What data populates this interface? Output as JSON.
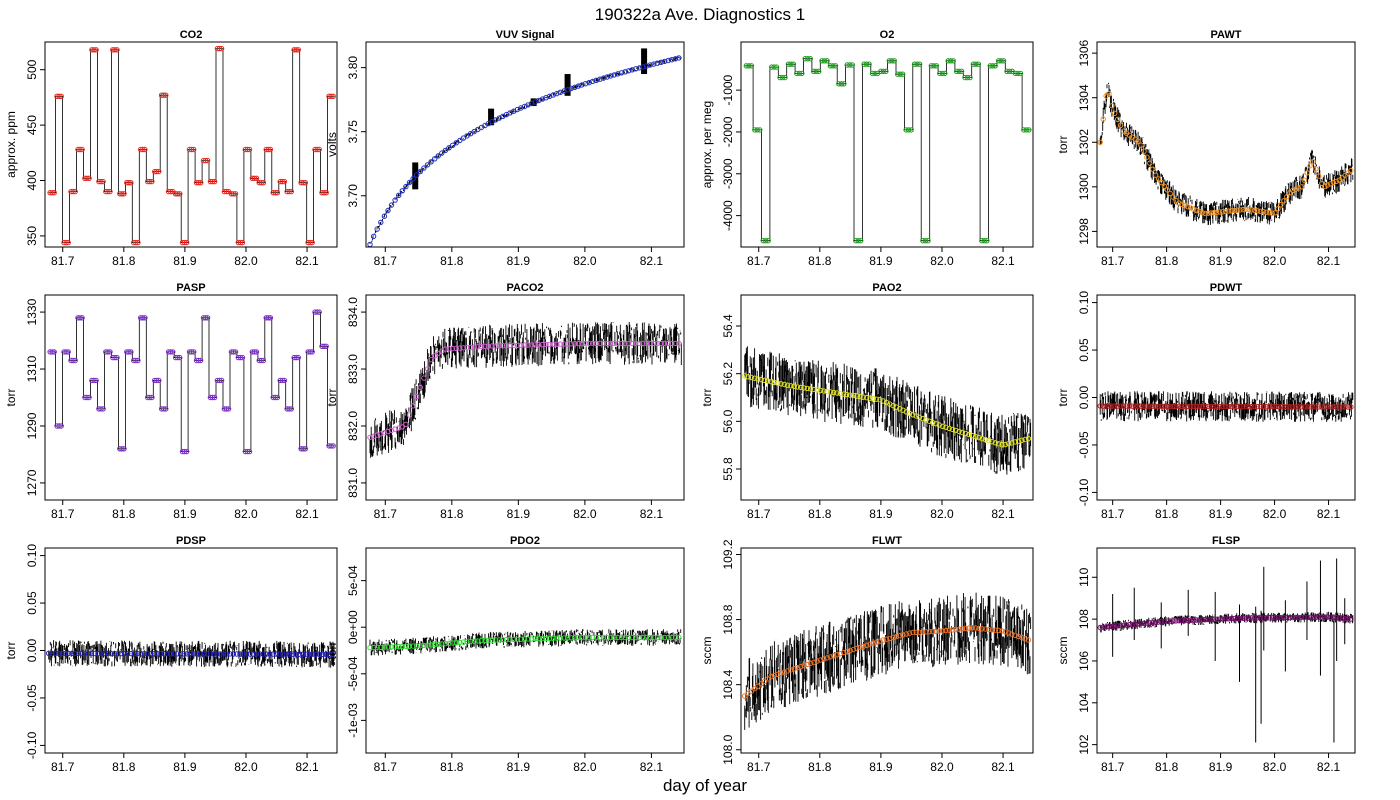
{
  "figure": {
    "title": "190322a   Ave. Diagnostics 1",
    "xlabel": "day of year"
  },
  "chart_data": [
    {
      "type": "line",
      "name": "co2",
      "title": "CO2",
      "ylabel": "approx. ppm",
      "xlim": [
        81.671,
        82.149
      ],
      "ylim": [
        340,
        525
      ],
      "xticks": [
        {
          "v": 81.7,
          "l": "81.7"
        },
        {
          "v": 81.8,
          "l": "81.8"
        },
        {
          "v": 81.9,
          "l": "81.9"
        },
        {
          "v": 82.0,
          "l": "82.0"
        },
        {
          "v": 82.1,
          "l": "82.1"
        }
      ],
      "yticks": [
        {
          "v": 350,
          "l": "350"
        },
        {
          "v": 400,
          "l": "400"
        },
        {
          "v": 450,
          "l": "450"
        },
        {
          "v": 500,
          "l": "500"
        }
      ],
      "grid": false,
      "marker_color": "#e8281e",
      "kind": "step",
      "levels": [
        389,
        476,
        344,
        390,
        428,
        402,
        518,
        399,
        390,
        518,
        388,
        398,
        344,
        428,
        399,
        408,
        477,
        390,
        388,
        344,
        428,
        398,
        418,
        399,
        519,
        390,
        388,
        344,
        428,
        402,
        398,
        428,
        389,
        399,
        390,
        518,
        398,
        344,
        428,
        389,
        476
      ],
      "start": 81.677,
      "end": 82.145
    },
    {
      "type": "line",
      "name": "vuv",
      "title": "VUV Signal",
      "ylabel": "volts",
      "xlim": [
        81.671,
        82.149
      ],
      "ylim": [
        3.66,
        3.82
      ],
      "xticks": [
        {
          "v": 81.7,
          "l": "81.7"
        },
        {
          "v": 81.8,
          "l": "81.8"
        },
        {
          "v": 81.9,
          "l": "81.9"
        },
        {
          "v": 82.0,
          "l": "82.0"
        },
        {
          "v": 82.1,
          "l": "82.1"
        }
      ],
      "yticks": [
        {
          "v": 3.7,
          "l": "3.70"
        },
        {
          "v": 3.75,
          "l": "3.75"
        },
        {
          "v": 3.8,
          "l": "3.80"
        }
      ],
      "grid": false,
      "marker_color": "#1f2fc8",
      "kind": "log",
      "y0": 3.662,
      "y1": 3.808,
      "noise": 0.0015,
      "spikes": [
        {
          "x": 81.745,
          "lo": 3.705,
          "hi": 3.726
        },
        {
          "x": 81.859,
          "lo": 3.755,
          "hi": 3.768
        },
        {
          "x": 81.923,
          "lo": 3.77,
          "hi": 3.776
        },
        {
          "x": 81.974,
          "lo": 3.778,
          "hi": 3.795
        },
        {
          "x": 82.089,
          "lo": 3.795,
          "hi": 3.815
        }
      ],
      "start": 81.677,
      "end": 82.145
    },
    {
      "type": "line",
      "name": "o2",
      "title": "O2",
      "ylabel": "approx. per meg",
      "xlim": [
        81.671,
        82.149
      ],
      "ylim": [
        -4750,
        150
      ],
      "xticks": [
        {
          "v": 81.7,
          "l": "81.7"
        },
        {
          "v": 81.8,
          "l": "81.8"
        },
        {
          "v": 81.9,
          "l": "81.9"
        },
        {
          "v": 82.0,
          "l": "82.0"
        },
        {
          "v": 82.1,
          "l": "82.1"
        }
      ],
      "yticks": [
        {
          "v": -4000,
          "l": "-4000"
        },
        {
          "v": -3000,
          "l": "-3000"
        },
        {
          "v": -2000,
          "l": "-2000"
        },
        {
          "v": -1000,
          "l": "-1000"
        }
      ],
      "grid": false,
      "marker_color": "#1fa01f",
      "kind": "step",
      "levels": [
        -420,
        -1950,
        -4600,
        -450,
        -700,
        -380,
        -600,
        -250,
        -550,
        -300,
        -420,
        -850,
        -400,
        -4600,
        -380,
        -600,
        -550,
        -300,
        -620,
        -1950,
        -380,
        -4600,
        -420,
        -600,
        -300,
        -550,
        -700,
        -380,
        -4600,
        -420,
        -300,
        -550,
        -600,
        -1950
      ],
      "start": 81.677,
      "end": 82.145
    },
    {
      "type": "line",
      "name": "pawt",
      "title": "PAWT",
      "ylabel": "torr",
      "xlim": [
        81.671,
        82.149
      ],
      "ylim": [
        1297.3,
        1306.5
      ],
      "xticks": [
        {
          "v": 81.7,
          "l": "81.7"
        },
        {
          "v": 81.8,
          "l": "81.8"
        },
        {
          "v": 81.9,
          "l": "81.9"
        },
        {
          "v": 82.0,
          "l": "82.0"
        },
        {
          "v": 82.1,
          "l": "82.1"
        }
      ],
      "yticks": [
        {
          "v": 1298,
          "l": "1298"
        },
        {
          "v": 1300,
          "l": "1300"
        },
        {
          "v": 1302,
          "l": "1302"
        },
        {
          "v": 1304,
          "l": "1304"
        },
        {
          "v": 1306,
          "l": "1306"
        }
      ],
      "grid": false,
      "marker_color": "#f0901e",
      "kind": "profile",
      "profile": [
        [
          81.677,
          1302.0
        ],
        [
          81.69,
          1304.5
        ],
        [
          81.7,
          1303.5
        ],
        [
          81.72,
          1302.5
        ],
        [
          81.75,
          1302.0
        ],
        [
          81.78,
          1300.5
        ],
        [
          81.82,
          1299.3
        ],
        [
          81.87,
          1298.8
        ],
        [
          81.95,
          1299.0
        ],
        [
          82.0,
          1298.8
        ],
        [
          82.03,
          1299.8
        ],
        [
          82.05,
          1300.0
        ],
        [
          82.07,
          1301.2
        ],
        [
          82.09,
          1300.0
        ],
        [
          82.12,
          1300.3
        ],
        [
          82.145,
          1300.8
        ]
      ],
      "noise": 0.55,
      "start": 81.677,
      "end": 82.145
    },
    {
      "type": "line",
      "name": "pasp",
      "title": "PASP",
      "ylabel": "torr",
      "xlim": [
        81.671,
        82.149
      ],
      "ylim": [
        1264,
        1336
      ],
      "xticks": [
        {
          "v": 81.7,
          "l": "81.7"
        },
        {
          "v": 81.8,
          "l": "81.8"
        },
        {
          "v": 81.9,
          "l": "81.9"
        },
        {
          "v": 82.0,
          "l": "82.0"
        },
        {
          "v": 82.1,
          "l": "82.1"
        }
      ],
      "yticks": [
        {
          "v": 1270,
          "l": "1270"
        },
        {
          "v": 1290,
          "l": "1290"
        },
        {
          "v": 1310,
          "l": "1310"
        },
        {
          "v": 1330,
          "l": "1330"
        }
      ],
      "grid": false,
      "marker_color": "#7a2fc8",
      "kind": "step",
      "levels": [
        1316,
        1290,
        1316,
        1313,
        1328,
        1300,
        1306,
        1296,
        1316,
        1314,
        1282,
        1316,
        1313,
        1328,
        1300,
        1306,
        1296,
        1316,
        1314,
        1281,
        1316,
        1313,
        1328,
        1300,
        1306,
        1296,
        1316,
        1314,
        1281,
        1316,
        1313,
        1328,
        1300,
        1306,
        1296,
        1314,
        1282,
        1316,
        1330,
        1318,
        1283
      ],
      "start": 81.677,
      "end": 82.145
    },
    {
      "type": "line",
      "name": "paco2",
      "title": "PACO2",
      "ylabel": "torr",
      "xlim": [
        81.671,
        82.149
      ],
      "ylim": [
        830.7,
        834.3
      ],
      "xticks": [
        {
          "v": 81.7,
          "l": "81.7"
        },
        {
          "v": 81.8,
          "l": "81.8"
        },
        {
          "v": 81.9,
          "l": "81.9"
        },
        {
          "v": 82.0,
          "l": "82.0"
        },
        {
          "v": 82.1,
          "l": "82.1"
        }
      ],
      "yticks": [
        {
          "v": 831.0,
          "l": "831.0"
        },
        {
          "v": 832.0,
          "l": "832.0"
        },
        {
          "v": 833.0,
          "l": "833.0"
        },
        {
          "v": 834.0,
          "l": "834.0"
        }
      ],
      "grid": false,
      "marker_color": "#d060d0",
      "kind": "profile",
      "profile": [
        [
          81.677,
          831.8
        ],
        [
          81.73,
          832.0
        ],
        [
          81.75,
          832.6
        ],
        [
          81.77,
          833.2
        ],
        [
          81.79,
          833.35
        ],
        [
          81.85,
          833.4
        ],
        [
          82.0,
          833.45
        ],
        [
          82.145,
          833.45
        ]
      ],
      "noise": 0.38,
      "start": 81.677,
      "end": 82.145
    },
    {
      "type": "line",
      "name": "pao2",
      "title": "PAO2",
      "ylabel": "torr",
      "xlim": [
        81.671,
        82.149
      ],
      "ylim": [
        55.67,
        56.53
      ],
      "xticks": [
        {
          "v": 81.7,
          "l": "81.7"
        },
        {
          "v": 81.8,
          "l": "81.8"
        },
        {
          "v": 81.9,
          "l": "81.9"
        },
        {
          "v": 82.0,
          "l": "82.0"
        },
        {
          "v": 82.1,
          "l": "82.1"
        }
      ],
      "yticks": [
        {
          "v": 55.8,
          "l": "55.8"
        },
        {
          "v": 56.0,
          "l": "56.0"
        },
        {
          "v": 56.2,
          "l": "56.2"
        },
        {
          "v": 56.4,
          "l": "56.4"
        }
      ],
      "grid": false,
      "marker_color": "#e0e020",
      "kind": "profile",
      "profile": [
        [
          81.677,
          56.19
        ],
        [
          81.75,
          56.15
        ],
        [
          81.85,
          56.11
        ],
        [
          81.9,
          56.09
        ],
        [
          81.95,
          56.03
        ],
        [
          82.0,
          55.98
        ],
        [
          82.05,
          55.94
        ],
        [
          82.1,
          55.9
        ],
        [
          82.145,
          55.93
        ]
      ],
      "noise": 0.13,
      "start": 81.677,
      "end": 82.145
    },
    {
      "type": "line",
      "name": "pdwt",
      "title": "PDWT",
      "ylabel": "torr",
      "xlim": [
        81.671,
        82.149
      ],
      "ylim": [
        -0.108,
        0.108
      ],
      "xticks": [
        {
          "v": 81.7,
          "l": "81.7"
        },
        {
          "v": 81.8,
          "l": "81.8"
        },
        {
          "v": 81.9,
          "l": "81.9"
        },
        {
          "v": 82.0,
          "l": "82.0"
        },
        {
          "v": 82.1,
          "l": "82.1"
        }
      ],
      "yticks": [
        {
          "v": -0.1,
          "l": "-0.10"
        },
        {
          "v": -0.05,
          "l": "-0.05"
        },
        {
          "v": 0.0,
          "l": "0.00"
        },
        {
          "v": 0.05,
          "l": "0.05"
        },
        {
          "v": 0.1,
          "l": "0.10"
        }
      ],
      "grid": false,
      "marker_color": "#b02020",
      "kind": "profile",
      "profile": [
        [
          81.677,
          -0.009
        ],
        [
          82.145,
          -0.01
        ]
      ],
      "noise": 0.016,
      "start": 81.677,
      "end": 82.145
    },
    {
      "type": "line",
      "name": "pdsp",
      "title": "PDSP",
      "ylabel": "torr",
      "xlim": [
        81.671,
        82.149
      ],
      "ylim": [
        -0.108,
        0.108
      ],
      "xticks": [
        {
          "v": 81.7,
          "l": "81.7"
        },
        {
          "v": 81.8,
          "l": "81.8"
        },
        {
          "v": 81.9,
          "l": "81.9"
        },
        {
          "v": 82.0,
          "l": "82.0"
        },
        {
          "v": 82.1,
          "l": "82.1"
        }
      ],
      "yticks": [
        {
          "v": -0.1,
          "l": "-0.10"
        },
        {
          "v": -0.05,
          "l": "-0.05"
        },
        {
          "v": 0.0,
          "l": "0.00"
        },
        {
          "v": 0.05,
          "l": "0.05"
        },
        {
          "v": 0.1,
          "l": "0.10"
        }
      ],
      "grid": false,
      "marker_color": "#2020c0",
      "kind": "profile",
      "profile": [
        [
          81.677,
          -0.003
        ],
        [
          82.145,
          -0.004
        ]
      ],
      "noise": 0.014,
      "start": 81.677,
      "end": 82.145
    },
    {
      "type": "line",
      "name": "pdo2",
      "title": "PDO2",
      "ylabel": "torr",
      "xlim": [
        81.671,
        82.149
      ],
      "ylim": [
        -0.00135,
        0.00085
      ],
      "xticks": [
        {
          "v": 81.7,
          "l": "81.7"
        },
        {
          "v": 81.8,
          "l": "81.8"
        },
        {
          "v": 81.9,
          "l": "81.9"
        },
        {
          "v": 82.0,
          "l": "82.0"
        },
        {
          "v": 82.1,
          "l": "82.1"
        }
      ],
      "yticks": [
        {
          "v": -0.001,
          "l": "-1e-03"
        },
        {
          "v": -0.0005,
          "l": "-5e-04"
        },
        {
          "v": 0.0,
          "l": "0e+00"
        },
        {
          "v": 0.0005,
          "l": "5e-04"
        }
      ],
      "grid": false,
      "marker_color": "#30e030",
      "kind": "profile",
      "profile": [
        [
          81.677,
          -0.00022
        ],
        [
          81.75,
          -0.0002
        ],
        [
          81.85,
          -0.00014
        ],
        [
          82.0,
          -0.00011
        ],
        [
          82.145,
          -0.00011
        ]
      ],
      "noise": 9e-05,
      "start": 81.677,
      "end": 82.145
    },
    {
      "type": "line",
      "name": "flwt",
      "title": "FLWT",
      "ylabel": "sccm",
      "xlim": [
        81.671,
        82.149
      ],
      "ylim": [
        107.98,
        109.24
      ],
      "xticks": [
        {
          "v": 81.7,
          "l": "81.7"
        },
        {
          "v": 81.8,
          "l": "81.8"
        },
        {
          "v": 81.9,
          "l": "81.9"
        },
        {
          "v": 82.0,
          "l": "82.0"
        },
        {
          "v": 82.1,
          "l": "82.1"
        }
      ],
      "yticks": [
        {
          "v": 108.0,
          "l": "108.0"
        },
        {
          "v": 108.4,
          "l": "108.4"
        },
        {
          "v": 108.8,
          "l": "108.8"
        },
        {
          "v": 109.2,
          "l": "109.2"
        }
      ],
      "grid": false,
      "marker_color": "#f07020",
      "kind": "profile",
      "profile": [
        [
          81.677,
          108.33
        ],
        [
          81.72,
          108.45
        ],
        [
          81.8,
          108.55
        ],
        [
          81.9,
          108.67
        ],
        [
          81.95,
          108.72
        ],
        [
          82.0,
          108.73
        ],
        [
          82.05,
          108.75
        ],
        [
          82.1,
          108.73
        ],
        [
          82.145,
          108.67
        ]
      ],
      "noise": 0.22,
      "start": 81.677,
      "end": 82.145
    },
    {
      "type": "line",
      "name": "flsp",
      "title": "FLSP",
      "ylabel": "sccm",
      "xlim": [
        81.671,
        82.149
      ],
      "ylim": [
        101.6,
        111.4
      ],
      "xticks": [
        {
          "v": 81.7,
          "l": "81.7"
        },
        {
          "v": 81.8,
          "l": "81.8"
        },
        {
          "v": 81.9,
          "l": "81.9"
        },
        {
          "v": 82.0,
          "l": "82.0"
        },
        {
          "v": 82.1,
          "l": "82.1"
        }
      ],
      "yticks": [
        {
          "v": 102,
          "l": "102"
        },
        {
          "v": 104,
          "l": "104"
        },
        {
          "v": 106,
          "l": "106"
        },
        {
          "v": 108,
          "l": "108"
        },
        {
          "v": 110,
          "l": "110"
        }
      ],
      "grid": false,
      "marker_color": "#7a1070",
      "kind": "profile",
      "profile": [
        [
          81.677,
          107.6
        ],
        [
          81.8,
          107.9
        ],
        [
          81.95,
          108.05
        ],
        [
          82.1,
          108.1
        ],
        [
          82.145,
          108.0
        ]
      ],
      "noise": 0.25,
      "spikes": [
        {
          "x": 81.7,
          "lo": 106.2,
          "hi": 109.2
        },
        {
          "x": 81.74,
          "lo": 107.0,
          "hi": 109.5
        },
        {
          "x": 81.79,
          "lo": 106.6,
          "hi": 108.8
        },
        {
          "x": 81.84,
          "lo": 107.2,
          "hi": 109.4
        },
        {
          "x": 81.89,
          "lo": 106.0,
          "hi": 109.3
        },
        {
          "x": 81.935,
          "lo": 105.0,
          "hi": 108.7
        },
        {
          "x": 81.965,
          "lo": 102.1,
          "hi": 108.6
        },
        {
          "x": 81.975,
          "lo": 103.0,
          "hi": 108.4
        },
        {
          "x": 81.98,
          "lo": 106.5,
          "hi": 110.5
        },
        {
          "x": 82.02,
          "lo": 105.5,
          "hi": 108.9
        },
        {
          "x": 82.06,
          "lo": 107.0,
          "hi": 109.8
        },
        {
          "x": 82.085,
          "lo": 105.3,
          "hi": 110.8
        },
        {
          "x": 82.11,
          "lo": 102.1,
          "hi": 108.2
        },
        {
          "x": 82.115,
          "lo": 106.0,
          "hi": 110.9
        },
        {
          "x": 82.13,
          "lo": 106.8,
          "hi": 109.0
        }
      ],
      "start": 81.677,
      "end": 82.145
    }
  ]
}
